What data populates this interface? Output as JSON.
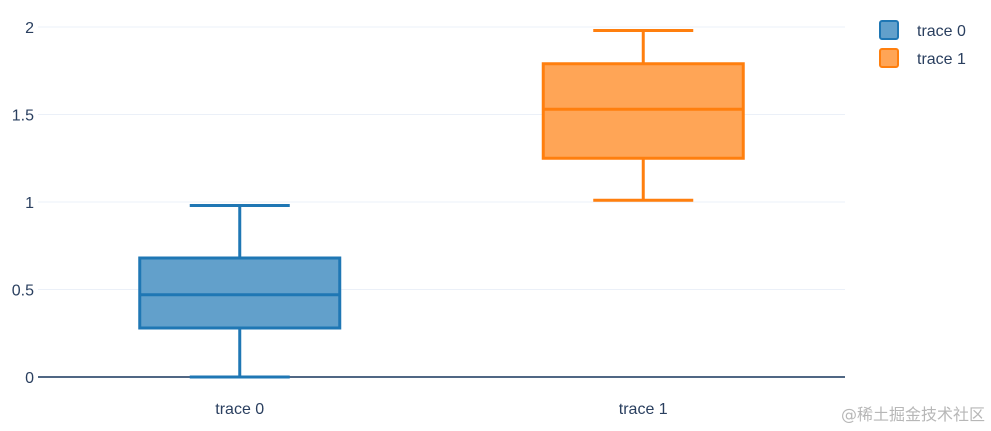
{
  "chart_data": {
    "type": "box",
    "categories": [
      "trace 0",
      "trace 1"
    ],
    "series": [
      {
        "name": "trace 0",
        "color": "#1f77b4",
        "whisker_low": 0.0,
        "q1": 0.28,
        "median": 0.47,
        "q3": 0.68,
        "whisker_high": 0.98
      },
      {
        "name": "trace 1",
        "color": "#ff7f0e",
        "whisker_low": 1.01,
        "q1": 1.25,
        "median": 1.53,
        "q3": 1.79,
        "whisker_high": 1.98
      }
    ],
    "ylim": [
      0,
      2
    ],
    "yticks": [
      {
        "value": 0,
        "label": "0"
      },
      {
        "value": 0.5,
        "label": "0.5"
      },
      {
        "value": 1,
        "label": "1"
      },
      {
        "value": 1.5,
        "label": "1.5"
      },
      {
        "value": 2,
        "label": "2"
      }
    ],
    "grid": true,
    "legend_position": "top-right"
  },
  "watermark": "@稀土掘金技术社区"
}
